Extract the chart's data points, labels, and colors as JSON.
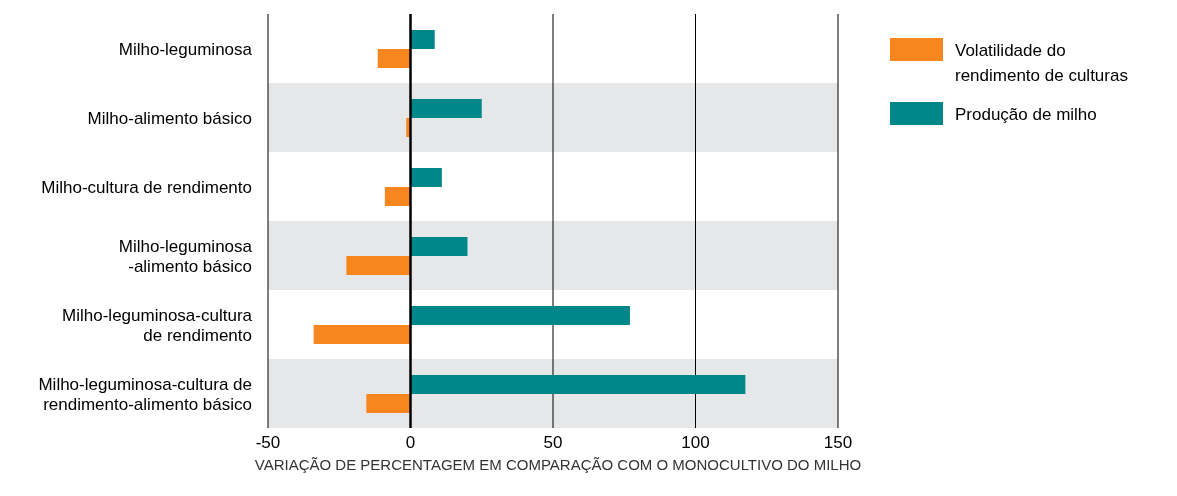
{
  "chart_data": {
    "type": "bar",
    "orientation": "horizontal",
    "xlabel": "VARIAÇÃO DE PERCENTAGEM EM COMPARAÇÃO COM O MONOCULTIVO DO MILHO",
    "categories": [
      "Milho-leguminosa",
      "Milho-alimento básico",
      "Milho-cultura de rendimento",
      "Milho-leguminosa\n-alimento básico",
      "Milho-leguminosa-cultura\nde rendimento",
      "Milho-leguminosa-cultura de\nrendimento-alimento básico"
    ],
    "series": [
      {
        "name": "Volatilidade do rendimento de culturas",
        "color": "#f7861f",
        "values": [
          -11.5,
          -1.5,
          -9,
          -22.5,
          -34,
          -15.5
        ]
      },
      {
        "name": "Produção de milho",
        "color": "#00878a",
        "values": [
          8.5,
          25,
          11,
          20,
          77,
          117.5
        ]
      }
    ],
    "xlim": [
      -50,
      150
    ],
    "xticks": [
      -50,
      0,
      50,
      100,
      150
    ],
    "grid": "x",
    "legend": "top right",
    "ref_lines": [
      {
        "axis": "x",
        "value": 0,
        "color": "#000000"
      }
    ],
    "bands": [
      {
        "axis": "y",
        "from": "Milho-alimento básico",
        "to": "Milho-alimento básico",
        "color": "#e6e7e8"
      },
      {
        "axis": "y",
        "from": "Milho-leguminosa\n-alimento básico",
        "to": "Milho-leguminosa\n-alimento básico",
        "color": "#e6e7e8"
      },
      {
        "axis": "y",
        "from": "Milho-leguminosa-cultura de\nrendimento-alimento básico",
        "to": "Milho-leguminosa-cultura de\nrendimento-alimento básico",
        "color": "#e6e7e8"
      }
    ]
  }
}
